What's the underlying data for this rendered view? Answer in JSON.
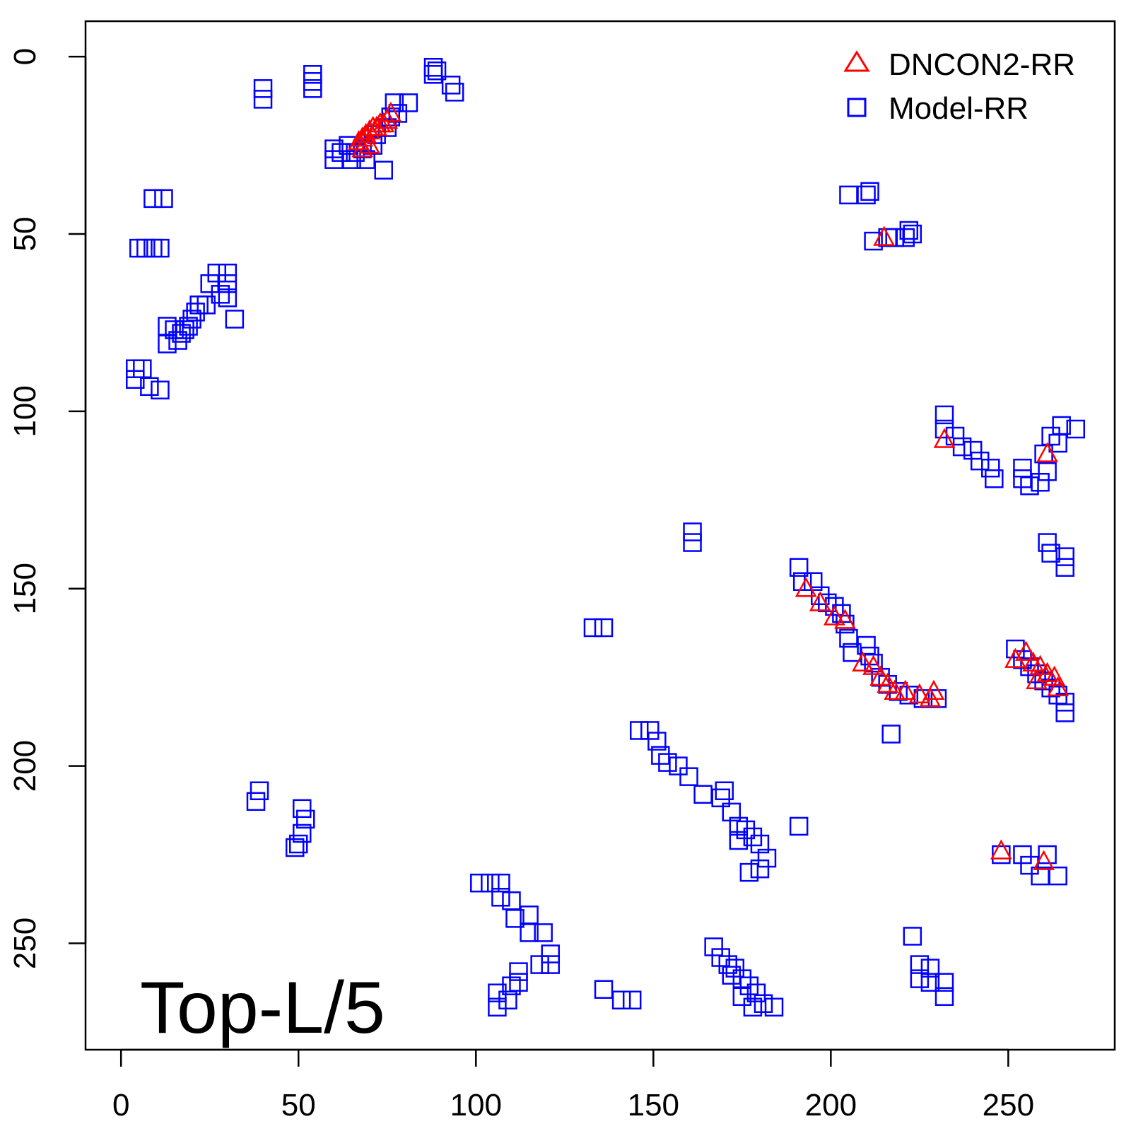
{
  "chart_data": {
    "type": "scatter",
    "annotation": "Top-L/5",
    "x_ticks": [
      0,
      50,
      100,
      150,
      200,
      250
    ],
    "y_ticks": [
      0,
      50,
      100,
      150,
      200,
      250
    ],
    "xlim": [
      -10,
      280
    ],
    "ylim": [
      -10,
      280
    ],
    "y_reversed": true,
    "legend_position": "top-right",
    "series": [
      {
        "name": "Model-RR",
        "marker": "square",
        "color": "#0000ff",
        "points": [
          [
            88,
            3
          ],
          [
            88,
            5
          ],
          [
            89,
            4
          ],
          [
            93,
            8
          ],
          [
            94,
            10
          ],
          [
            40,
            9
          ],
          [
            40,
            12
          ],
          [
            54,
            5
          ],
          [
            54,
            7
          ],
          [
            54,
            9
          ],
          [
            60,
            26
          ],
          [
            60,
            29
          ],
          [
            62,
            27
          ],
          [
            64,
            25
          ],
          [
            65,
            29
          ],
          [
            66,
            27
          ],
          [
            68,
            26
          ],
          [
            69,
            29
          ],
          [
            71,
            25
          ],
          [
            72,
            22
          ],
          [
            74,
            32
          ],
          [
            75,
            20
          ],
          [
            76,
            17
          ],
          [
            77,
            13
          ],
          [
            78,
            16
          ],
          [
            81,
            13
          ],
          [
            9,
            40
          ],
          [
            12,
            40
          ],
          [
            5,
            54
          ],
          [
            7,
            54
          ],
          [
            9,
            54
          ],
          [
            11,
            54
          ],
          [
            27,
            61
          ],
          [
            30,
            61
          ],
          [
            25,
            64
          ],
          [
            30,
            64
          ],
          [
            28,
            67
          ],
          [
            30,
            68
          ],
          [
            24,
            70
          ],
          [
            22,
            70
          ],
          [
            21,
            72
          ],
          [
            20,
            74
          ],
          [
            19,
            76
          ],
          [
            18,
            77
          ],
          [
            17,
            78
          ],
          [
            16,
            80
          ],
          [
            15,
            77
          ],
          [
            13,
            76
          ],
          [
            13,
            81
          ],
          [
            32,
            74
          ],
          [
            4,
            88
          ],
          [
            6,
            88
          ],
          [
            4,
            91
          ],
          [
            8,
            93
          ],
          [
            11,
            94
          ],
          [
            205,
            39
          ],
          [
            210,
            39
          ],
          [
            211,
            38
          ],
          [
            212,
            52
          ],
          [
            216,
            51
          ],
          [
            218,
            51
          ],
          [
            221,
            51
          ],
          [
            222,
            49
          ],
          [
            223,
            50
          ],
          [
            232,
            101
          ],
          [
            232,
            105
          ],
          [
            235,
            107
          ],
          [
            237,
            110
          ],
          [
            240,
            111
          ],
          [
            242,
            114
          ],
          [
            245,
            116
          ],
          [
            246,
            119
          ],
          [
            254,
            116
          ],
          [
            254,
            119
          ],
          [
            256,
            121
          ],
          [
            261,
            117
          ],
          [
            259,
            120
          ],
          [
            260,
            112
          ],
          [
            262,
            107
          ],
          [
            264,
            109
          ],
          [
            265,
            104
          ],
          [
            269,
            105
          ],
          [
            261,
            137
          ],
          [
            262,
            140
          ],
          [
            266,
            141
          ],
          [
            266,
            144
          ],
          [
            161,
            134
          ],
          [
            161,
            137
          ],
          [
            133,
            161
          ],
          [
            136,
            161
          ],
          [
            191,
            144
          ],
          [
            192,
            148
          ],
          [
            195,
            148
          ],
          [
            197,
            152
          ],
          [
            199,
            154
          ],
          [
            201,
            155
          ],
          [
            203,
            157
          ],
          [
            204,
            160
          ],
          [
            205,
            164
          ],
          [
            206,
            168
          ],
          [
            210,
            166
          ],
          [
            211,
            169
          ],
          [
            212,
            171
          ],
          [
            214,
            175
          ],
          [
            216,
            177
          ],
          [
            219,
            179
          ],
          [
            222,
            180
          ],
          [
            226,
            181
          ],
          [
            230,
            181
          ],
          [
            217,
            191
          ],
          [
            252,
            167
          ],
          [
            254,
            170
          ],
          [
            256,
            172
          ],
          [
            258,
            174
          ],
          [
            260,
            176
          ],
          [
            262,
            178
          ],
          [
            264,
            180
          ],
          [
            266,
            182
          ],
          [
            266,
            185
          ],
          [
            146,
            190
          ],
          [
            149,
            190
          ],
          [
            151,
            193
          ],
          [
            152,
            197
          ],
          [
            154,
            199
          ],
          [
            157,
            200
          ],
          [
            160,
            203
          ],
          [
            164,
            208
          ],
          [
            169,
            209
          ],
          [
            170,
            207
          ],
          [
            172,
            213
          ],
          [
            174,
            217
          ],
          [
            176,
            218
          ],
          [
            178,
            220
          ],
          [
            180,
            222
          ],
          [
            182,
            226
          ],
          [
            180,
            229
          ],
          [
            177,
            230
          ],
          [
            191,
            217
          ],
          [
            174,
            221
          ],
          [
            39,
            207
          ],
          [
            38,
            210
          ],
          [
            51,
            212
          ],
          [
            52,
            215
          ],
          [
            51,
            219
          ],
          [
            50,
            222
          ],
          [
            49,
            223
          ],
          [
            101,
            233
          ],
          [
            104,
            233
          ],
          [
            107,
            233
          ],
          [
            107,
            237
          ],
          [
            110,
            238
          ],
          [
            111,
            243
          ],
          [
            115,
            242
          ],
          [
            115,
            247
          ],
          [
            119,
            247
          ],
          [
            121,
            253
          ],
          [
            121,
            256
          ],
          [
            118,
            256
          ],
          [
            112,
            258
          ],
          [
            112,
            261
          ],
          [
            110,
            262
          ],
          [
            106,
            264
          ],
          [
            106,
            268
          ],
          [
            109,
            266
          ],
          [
            136,
            263
          ],
          [
            141,
            266
          ],
          [
            144,
            266
          ],
          [
            167,
            251
          ],
          [
            169,
            254
          ],
          [
            171,
            256
          ],
          [
            173,
            257
          ],
          [
            175,
            260
          ],
          [
            177,
            262
          ],
          [
            179,
            264
          ],
          [
            181,
            267
          ],
          [
            184,
            268
          ],
          [
            178,
            268
          ],
          [
            172,
            259
          ],
          [
            175,
            265
          ],
          [
            223,
            248
          ],
          [
            225,
            256
          ],
          [
            225,
            260
          ],
          [
            228,
            257
          ],
          [
            228,
            261
          ],
          [
            232,
            261
          ],
          [
            232,
            265
          ],
          [
            248,
            225
          ],
          [
            254,
            225
          ],
          [
            256,
            228
          ],
          [
            259,
            231
          ],
          [
            264,
            231
          ],
          [
            261,
            225
          ]
        ]
      },
      {
        "name": "DNCON2-RR",
        "marker": "triangle",
        "color": "#ff0000",
        "points": [
          [
            67,
            24
          ],
          [
            68,
            23
          ],
          [
            69,
            22
          ],
          [
            70,
            21
          ],
          [
            71,
            20
          ],
          [
            72,
            20
          ],
          [
            73,
            19
          ],
          [
            74,
            19
          ],
          [
            75,
            18
          ],
          [
            76,
            16
          ],
          [
            68,
            26
          ],
          [
            70,
            25
          ],
          [
            215,
            51
          ],
          [
            232,
            108
          ],
          [
            261,
            112
          ],
          [
            193,
            150
          ],
          [
            197,
            154
          ],
          [
            201,
            158
          ],
          [
            204,
            159
          ],
          [
            209,
            171
          ],
          [
            212,
            172
          ],
          [
            214,
            175
          ],
          [
            216,
            177
          ],
          [
            218,
            179
          ],
          [
            221,
            179
          ],
          [
            225,
            180
          ],
          [
            228,
            181
          ],
          [
            229,
            179
          ],
          [
            252,
            170
          ],
          [
            255,
            168
          ],
          [
            257,
            171
          ],
          [
            259,
            172
          ],
          [
            261,
            174
          ],
          [
            263,
            175
          ],
          [
            264,
            178
          ],
          [
            258,
            176
          ],
          [
            248,
            224
          ],
          [
            260,
            227
          ]
        ]
      }
    ]
  }
}
